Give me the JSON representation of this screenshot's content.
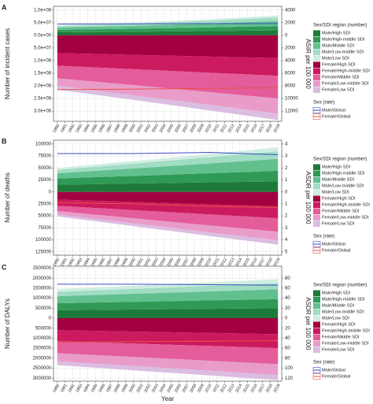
{
  "chart_data": [
    {
      "type": "area",
      "label": "A",
      "ylabel": "Number of incident cases",
      "y2label": "ASIR per 100 000",
      "legend_title": "Sex/SDI region (number)",
      "legend2_title": "Sex (rate)",
      "x": [
        1990,
        2000,
        2010,
        2019
      ],
      "xlim": [
        1989.5,
        2019.5
      ],
      "xticks": [
        1990,
        1991,
        1992,
        1993,
        1994,
        1995,
        1996,
        1997,
        1998,
        1999,
        2000,
        2001,
        2002,
        2003,
        2004,
        2005,
        2006,
        2007,
        2008,
        2009,
        2010,
        2011,
        2012,
        2013,
        2014,
        2015,
        2016,
        2017,
        2018,
        2019
      ],
      "ylim": [
        -340000000,
        115000000
      ],
      "yticks": [
        {
          "value": 100000000,
          "label": "1.0e+08"
        },
        {
          "value": 50000000,
          "label": "5.0e+07"
        },
        {
          "value": 0,
          "label": "0.0e+00"
        },
        {
          "value": -50000000,
          "label": "5.0e+07"
        },
        {
          "value": -100000000,
          "label": "1.0e+08"
        },
        {
          "value": -150000000,
          "label": "1.5e+08"
        },
        {
          "value": -200000000,
          "label": "2.0e+08"
        },
        {
          "value": -250000000,
          "label": "2.5e+08"
        },
        {
          "value": -300000000,
          "label": "3.0e+08"
        }
      ],
      "y2lim": [
        -13600,
        4600
      ],
      "y2ticks": [
        4000,
        2000,
        0,
        {
          "value": -2000,
          "label": "2000"
        },
        {
          "value": -4000,
          "label": "4000"
        },
        {
          "value": -6000,
          "label": "6000"
        },
        {
          "value": -8000,
          "label": "8000"
        },
        {
          "value": -10000,
          "label": "10000"
        },
        {
          "value": -12000,
          "label": "12000"
        }
      ],
      "grid": true,
      "series": [
        {
          "name": "Male/High SDI",
          "color": "#1d7a3b",
          "values": [
            12000000,
            14000000,
            17000000,
            20000000
          ]
        },
        {
          "name": "Male/High-middle SDI",
          "color": "#2f9a56",
          "values": [
            10000000,
            12000000,
            14500000,
            17000000
          ]
        },
        {
          "name": "Male/Middle SDI",
          "color": "#62c08f",
          "values": [
            9000000,
            12000000,
            16000000,
            20000000
          ]
        },
        {
          "name": "Male/Low-middle SDI",
          "color": "#a1dcc4",
          "values": [
            6000000,
            8000000,
            11000000,
            14000000
          ]
        },
        {
          "name": "Male/Low SDI",
          "color": "#cfeee1",
          "values": [
            3000000,
            4000000,
            5500000,
            7000000
          ]
        },
        {
          "name": "Female/High SDI",
          "color": "#a3003f",
          "values": [
            -70000000,
            -77000000,
            -84000000,
            -90000000
          ]
        },
        {
          "name": "Female/High-middle SDI",
          "color": "#cc1a5e",
          "values": [
            -50000000,
            -57000000,
            -64000000,
            -70000000
          ]
        },
        {
          "name": "Female/Middle SDI",
          "color": "#e45c9a",
          "values": [
            -50000000,
            -63000000,
            -77000000,
            -90000000
          ]
        },
        {
          "name": "Female/Low-middle SDI",
          "color": "#e99cc9",
          "values": [
            -30000000,
            -40000000,
            -50000000,
            -60000000
          ]
        },
        {
          "name": "Female/Low SDI",
          "color": "#dbbde2",
          "values": [
            -15000000,
            -18000000,
            -22000000,
            -25000000
          ]
        },
        {
          "name": "Male/Global",
          "color": "#3b4cc0",
          "axis": "y2",
          "values": [
            1800,
            1830,
            1860,
            1850
          ]
        },
        {
          "name": "Female/Global",
          "color": "#e8524a",
          "axis": "y2",
          "values": [
            -8600,
            -8500,
            -8400,
            -8300
          ]
        }
      ]
    },
    {
      "type": "area",
      "label": "B",
      "ylabel": "Number of deaths",
      "y2label": "ASDR per 100 000",
      "legend_title": "Sex/SDI region (number)",
      "legend2_title": "Sex (rate)",
      "x": [
        1990,
        2000,
        2010,
        2019
      ],
      "xlim": [
        1989.5,
        2019.5
      ],
      "xticks": [
        1990,
        1991,
        1992,
        1993,
        1994,
        1995,
        1996,
        1997,
        1998,
        1999,
        2000,
        2001,
        2002,
        2003,
        2004,
        2005,
        2006,
        2007,
        2008,
        2009,
        2010,
        2011,
        2012,
        2013,
        2014,
        2015,
        2016,
        2017,
        2018,
        2019
      ],
      "ylim": [
        -132000,
        108000
      ],
      "yticks": [
        100000,
        75000,
        50000,
        25000,
        0,
        {
          "value": -25000,
          "label": "25000"
        },
        {
          "value": -50000,
          "label": "50000"
        },
        {
          "value": -75000,
          "label": "75000"
        },
        {
          "value": -100000,
          "label": "100000"
        },
        {
          "value": -125000,
          "label": "125000"
        }
      ],
      "y2lim": [
        -5.28,
        4.32
      ],
      "y2ticks": [
        4,
        3,
        2,
        1,
        0,
        {
          "value": -1,
          "label": "1"
        },
        {
          "value": -2,
          "label": "2"
        },
        {
          "value": -3,
          "label": "3"
        },
        {
          "value": -4,
          "label": "4"
        },
        {
          "value": -5,
          "label": "5"
        }
      ],
      "grid": true,
      "series": [
        {
          "name": "Male/High SDI",
          "color": "#1d7a3b",
          "values": [
            15000,
            17500,
            20000,
            22000
          ]
        },
        {
          "name": "Male/High-middle SDI",
          "color": "#2f9a56",
          "values": [
            13000,
            16000,
            19000,
            22000
          ]
        },
        {
          "name": "Male/Middle SDI",
          "color": "#62c08f",
          "values": [
            11000,
            15500,
            20500,
            25000
          ]
        },
        {
          "name": "Male/Low-middle SDI",
          "color": "#a1dcc4",
          "values": [
            7000,
            10000,
            13000,
            16000
          ]
        },
        {
          "name": "Male/Low SDI",
          "color": "#cfeee1",
          "values": [
            4000,
            5300,
            6700,
            8000
          ]
        },
        {
          "name": "Female/High SDI",
          "color": "#a3003f",
          "values": [
            -16000,
            -21000,
            -26000,
            -30000
          ]
        },
        {
          "name": "Female/High-middle SDI",
          "color": "#cc1a5e",
          "values": [
            -13000,
            -17000,
            -21000,
            -25000
          ]
        },
        {
          "name": "Female/Middle SDI",
          "color": "#e45c9a",
          "values": [
            -11000,
            -17000,
            -23000,
            -28000
          ]
        },
        {
          "name": "Female/Low-middle SDI",
          "color": "#e99cc9",
          "values": [
            -7000,
            -10700,
            -14500,
            -18000
          ]
        },
        {
          "name": "Female/Low SDI",
          "color": "#dbbde2",
          "values": [
            -4000,
            -5700,
            -7400,
            -9000
          ]
        },
        {
          "name": "Male/Global",
          "color": "#3b4cc0",
          "axis": "y2",
          "values": [
            3.2,
            3.2,
            3.3,
            3.1
          ]
        },
        {
          "name": "Female/Global",
          "color": "#e8524a",
          "axis": "y2",
          "values": [
            -0.9,
            -1.0,
            -1.2,
            -1.3
          ]
        }
      ]
    },
    {
      "type": "area",
      "label": "C",
      "ylabel": "Number of DALYs",
      "y2label": "ASDR per 100 000",
      "xlabel": "Year",
      "legend_title": "Sex/SDI region (number)",
      "legend2_title": "Sex (rate)",
      "x": [
        1990,
        2000,
        2010,
        2019
      ],
      "xlim": [
        1989.5,
        2019.5
      ],
      "xticks": [
        1990,
        1991,
        1992,
        1993,
        1994,
        1995,
        1996,
        1997,
        1998,
        1999,
        2000,
        2001,
        2002,
        2003,
        2004,
        2005,
        2006,
        2007,
        2008,
        2009,
        2010,
        2011,
        2012,
        2013,
        2014,
        2015,
        2016,
        2017,
        2018,
        2019
      ],
      "ylim": [
        -3150000,
        2600000
      ],
      "yticks": [
        2500000,
        2000000,
        1500000,
        1000000,
        500000,
        0,
        {
          "value": -500000,
          "label": "500000"
        },
        {
          "value": -1000000,
          "label": "1000000"
        },
        {
          "value": -1500000,
          "label": "1500000"
        },
        {
          "value": -2000000,
          "label": "2000000"
        },
        {
          "value": -2500000,
          "label": "2500000"
        },
        {
          "value": -3000000,
          "label": "3000000"
        }
      ],
      "y2lim": [
        -126,
        104
      ],
      "y2ticks": [
        80,
        60,
        40,
        20,
        0,
        {
          "value": -20,
          "label": "20"
        },
        {
          "value": -40,
          "label": "40"
        },
        {
          "value": -60,
          "label": "60"
        },
        {
          "value": -80,
          "label": "80"
        },
        {
          "value": -100,
          "label": "100"
        },
        {
          "value": -120,
          "label": "120"
        }
      ],
      "grid": true,
      "series": [
        {
          "name": "Male/High SDI",
          "color": "#1d7a3b",
          "values": [
            400000,
            435000,
            470000,
            500000
          ]
        },
        {
          "name": "Male/High-middle SDI",
          "color": "#2f9a56",
          "values": [
            350000,
            385000,
            420000,
            450000
          ]
        },
        {
          "name": "Male/Middle SDI",
          "color": "#62c08f",
          "values": [
            350000,
            400000,
            450000,
            500000
          ]
        },
        {
          "name": "Male/Low-middle SDI",
          "color": "#a1dcc4",
          "values": [
            220000,
            250000,
            275000,
            300000
          ]
        },
        {
          "name": "Male/Low SDI",
          "color": "#cfeee1",
          "values": [
            130000,
            155000,
            180000,
            200000
          ]
        },
        {
          "name": "Female/High SDI",
          "color": "#a3003f",
          "values": [
            -600000,
            -670000,
            -740000,
            -800000
          ]
        },
        {
          "name": "Female/High-middle SDI",
          "color": "#cc1a5e",
          "values": [
            -550000,
            -600000,
            -650000,
            -700000
          ]
        },
        {
          "name": "Female/Middle SDI",
          "color": "#e45c9a",
          "values": [
            -600000,
            -670000,
            -740000,
            -800000
          ]
        },
        {
          "name": "Female/Low-middle SDI",
          "color": "#e99cc9",
          "values": [
            -400000,
            -450000,
            -500000,
            -550000
          ]
        },
        {
          "name": "Female/Low SDI",
          "color": "#dbbde2",
          "values": [
            -200000,
            -217000,
            -234000,
            -250000
          ]
        },
        {
          "name": "Male/Global",
          "color": "#3b4cc0",
          "axis": "y2",
          "values": [
            68,
            68,
            67,
            66
          ]
        },
        {
          "name": "Female/Global",
          "color": "#e8524a",
          "axis": "y2",
          "values": [
            -48,
            -47,
            -46,
            -45
          ]
        }
      ]
    }
  ]
}
